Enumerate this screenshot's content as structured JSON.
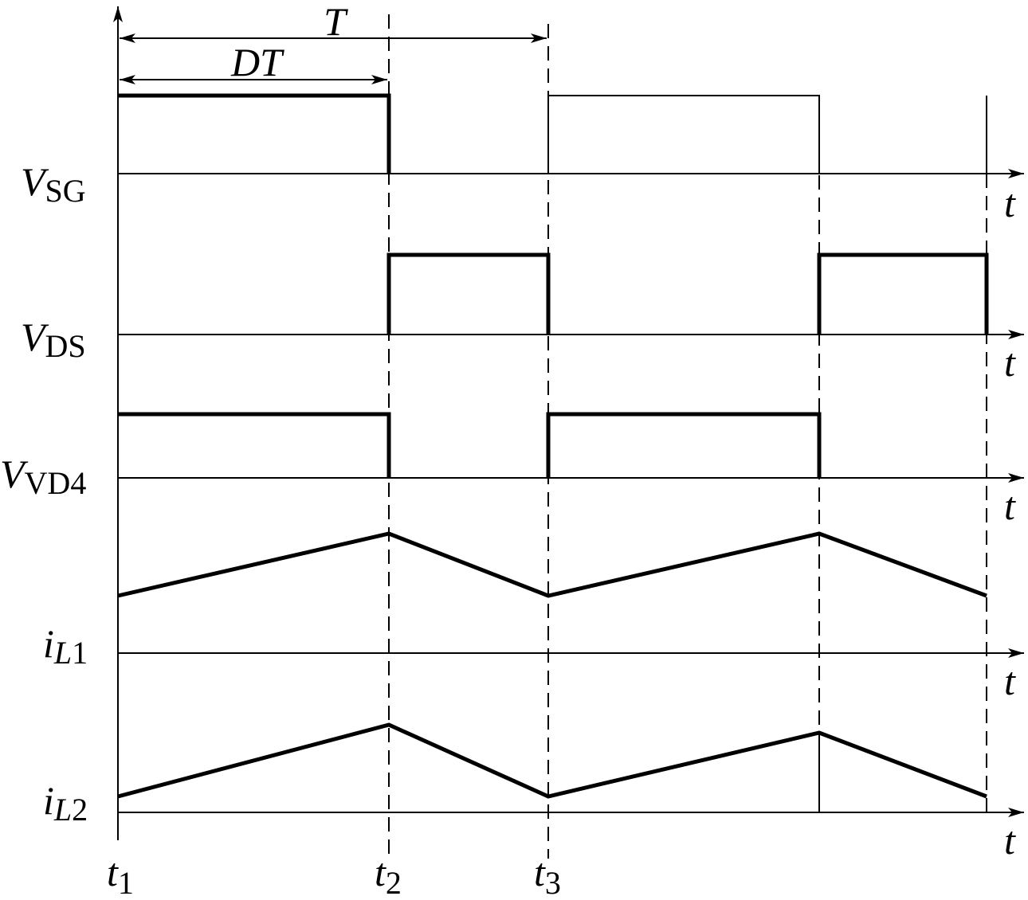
{
  "dimensions": {
    "period": "T",
    "on_time": "DT"
  },
  "signals": [
    {
      "symbol": "V",
      "subscript": "SG",
      "axis": "t"
    },
    {
      "symbol": "V",
      "subscript": "DS",
      "axis": "t"
    },
    {
      "symbol": "V",
      "subscript": "VD4",
      "axis": "t"
    },
    {
      "symbol": "i",
      "subscript_var": "L",
      "subscript": "1",
      "axis": "t"
    },
    {
      "symbol": "i",
      "subscript_var": "L",
      "subscript": "2",
      "axis": "t"
    }
  ],
  "time_markers": [
    {
      "symbol": "t",
      "subscript": "1"
    },
    {
      "symbol": "t",
      "subscript": "2"
    },
    {
      "symbol": "t",
      "subscript": "3"
    }
  ]
}
